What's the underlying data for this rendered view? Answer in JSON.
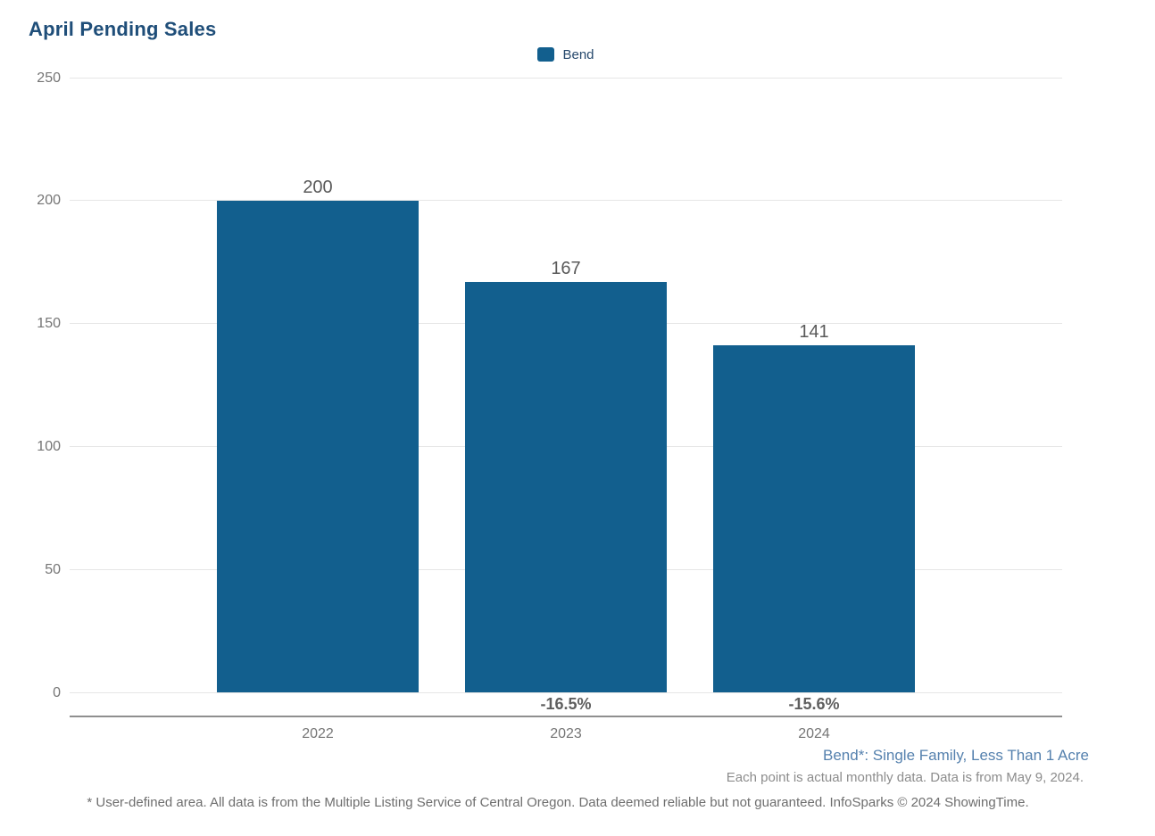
{
  "page": {
    "title": "April Pending Sales",
    "note_primary": "Bend*: Single Family, Less Than 1 Acre",
    "note_secondary": "Each point is actual monthly data. Data is from May 9, 2024.",
    "footnote": "* User-defined area. All data is from the Multiple Listing Service of Central Oregon. Data deemed reliable but not guaranteed. InfoSparks © 2024 ShowingTime."
  },
  "legend": {
    "position": "top-center",
    "items": [
      {
        "label": "Bend",
        "color": "#125f8e"
      }
    ]
  },
  "colors": {
    "title": "#1f4e79",
    "bar": "#125f8e",
    "gridline": "#e6e6e6",
    "axis_line": "#8f8f8f",
    "tick_label": "#757575",
    "value_label": "#595959",
    "change_label": "#5f5f5f",
    "note_primary": "#5581ae",
    "note_secondary": "#8c8c8c",
    "footnote": "#6e6e6e",
    "legend_label": "#27496d"
  },
  "chart_data": {
    "type": "bar",
    "title": "April Pending Sales",
    "series": [
      {
        "name": "Bend",
        "values": [
          200,
          167,
          141
        ],
        "color": "#125f8e"
      }
    ],
    "categories": [
      "2022",
      "2023",
      "2024"
    ],
    "values": [
      200,
      167,
      141
    ],
    "value_labels": [
      "200",
      "167",
      "141"
    ],
    "change_labels": [
      "",
      "-16.5%",
      "-15.6%"
    ],
    "xlabel": "",
    "ylabel": "",
    "ylim": [
      0,
      250
    ],
    "yticks": [
      0,
      50,
      100,
      150,
      200,
      250
    ],
    "grid": "horizontal",
    "legend_position": "top-center"
  }
}
